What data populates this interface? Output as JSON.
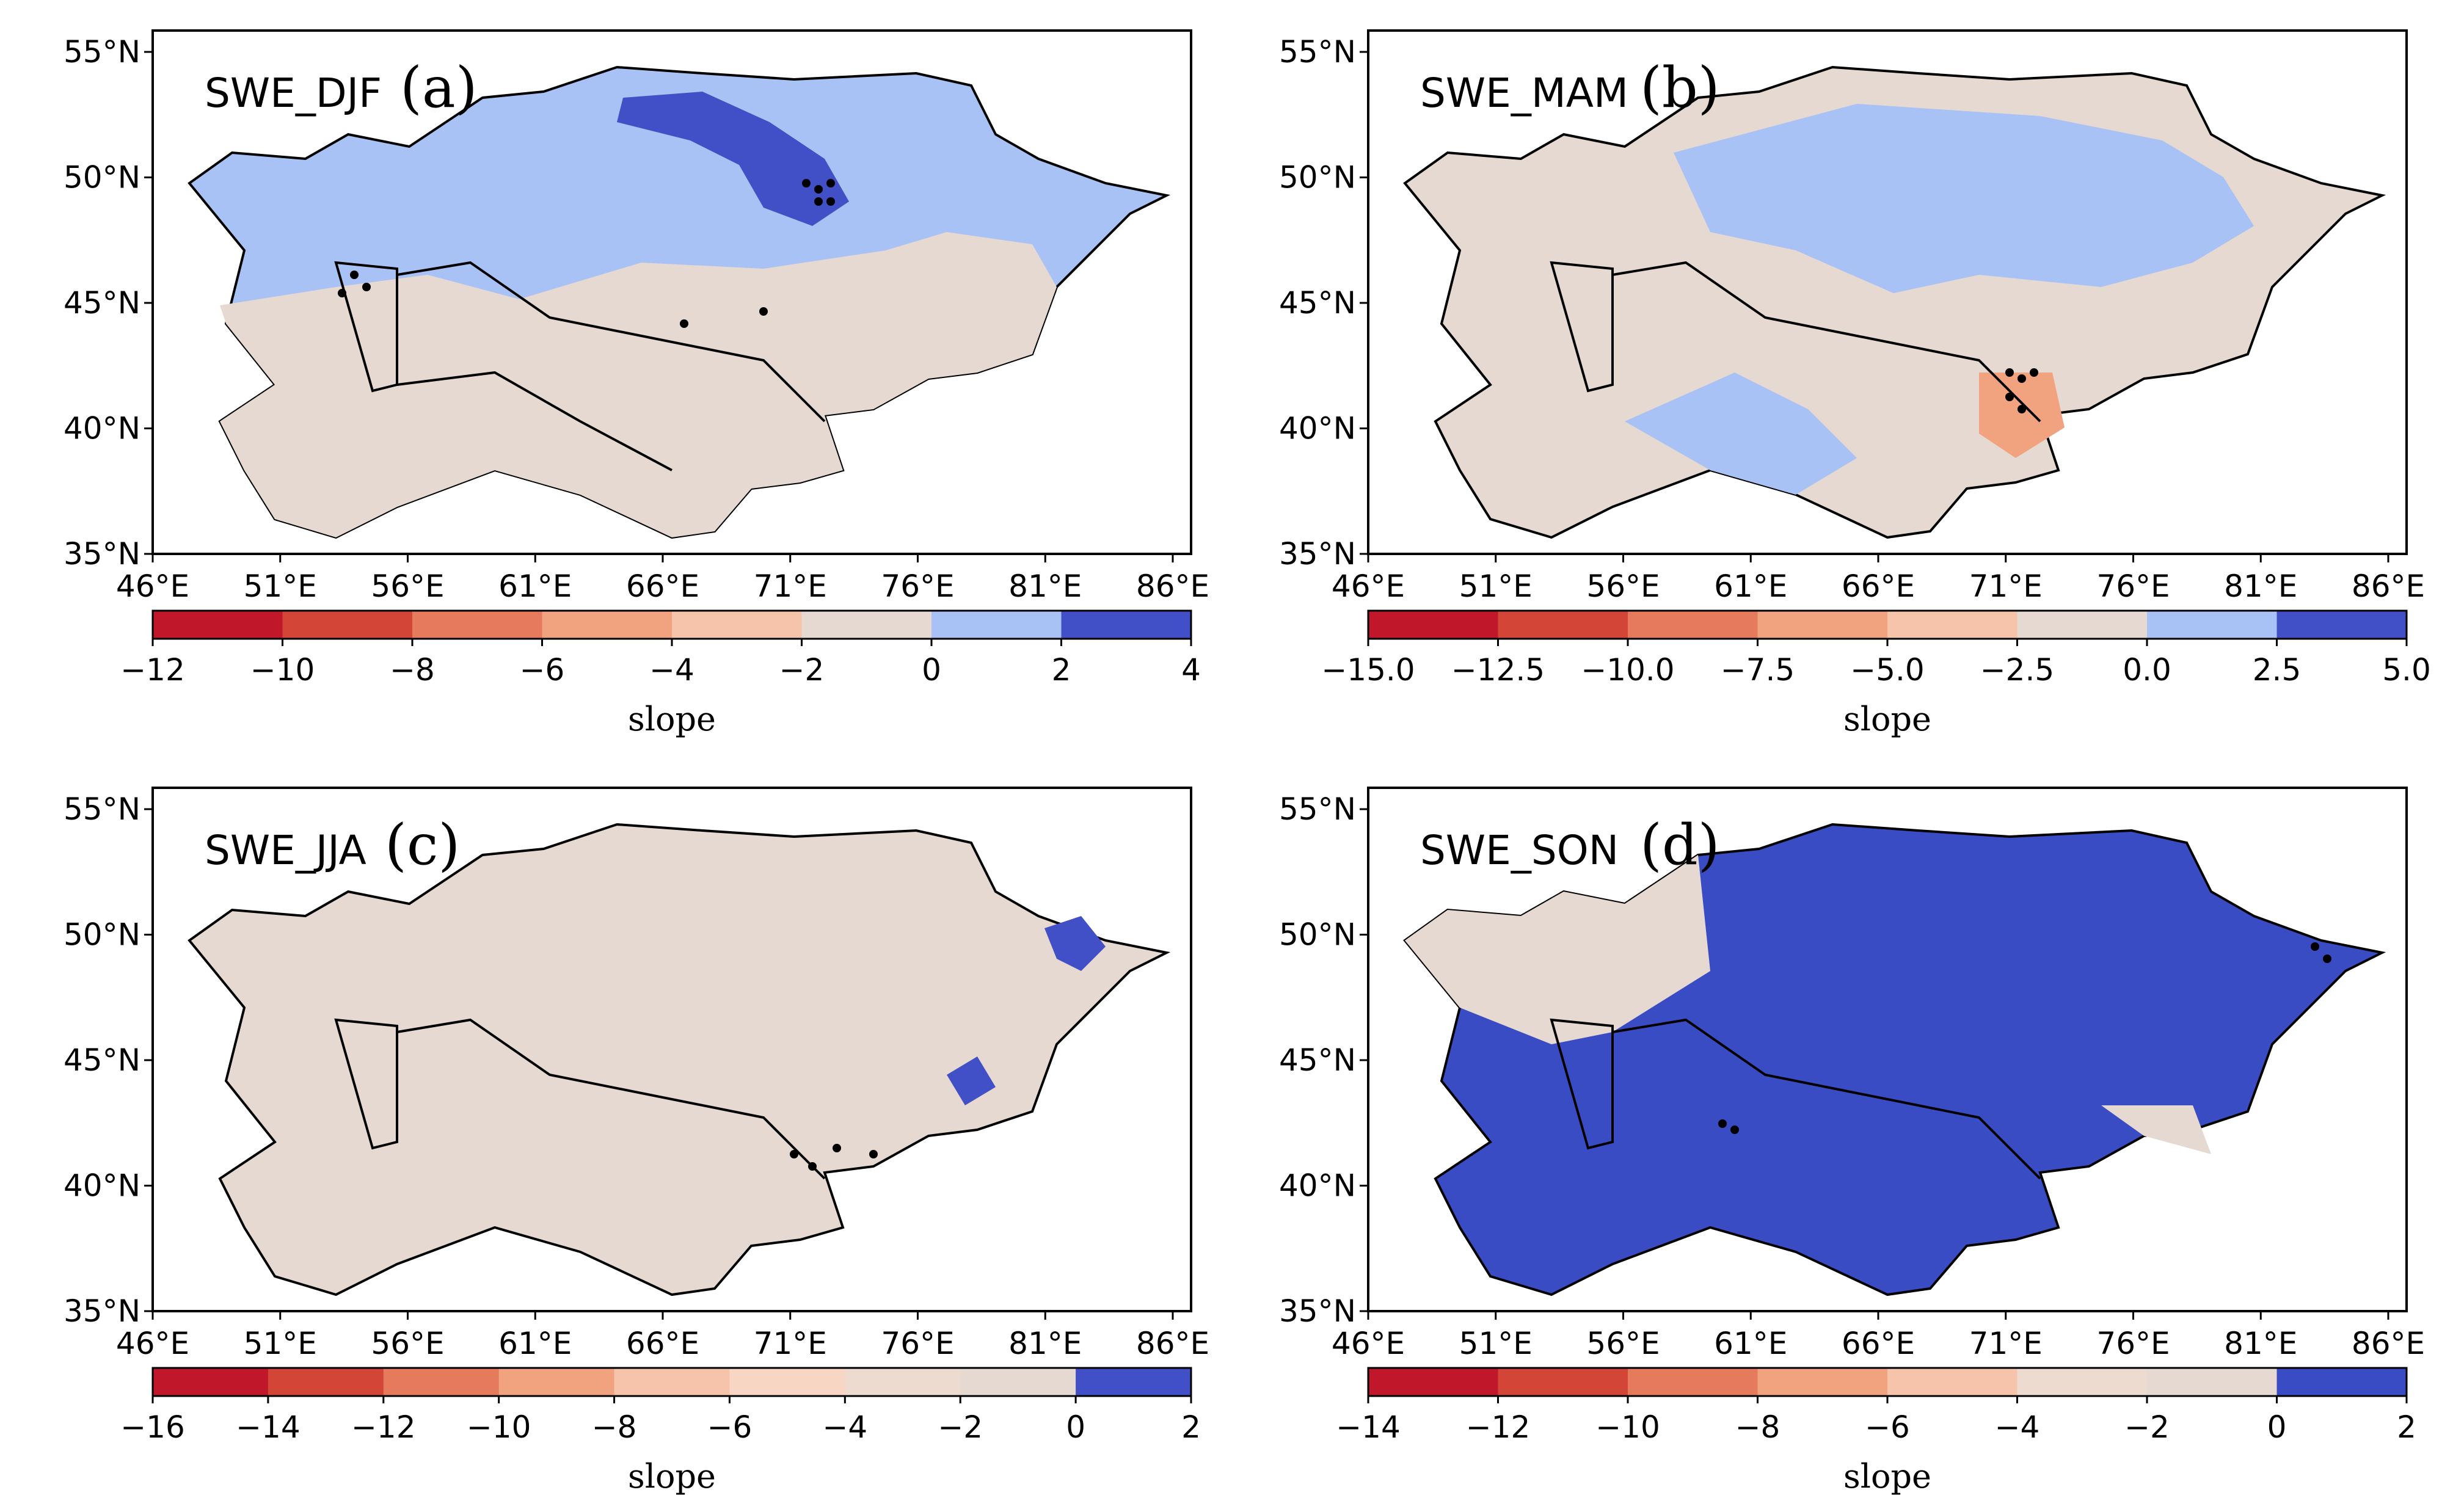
{
  "figure": {
    "panels": [
      {
        "id": "a",
        "title": "SWE_DJF",
        "letter": "(a)",
        "lat_labels": [
          "55°N",
          "50°N",
          "45°N",
          "40°N",
          "35°N"
        ],
        "lon_labels": [
          "46°E",
          "51°E",
          "56°E",
          "61°E",
          "66°E",
          "71°E",
          "76°E",
          "81°E",
          "86°E"
        ],
        "colorbar": {
          "ticks": [
            "−12",
            "−10",
            "−8",
            "−6",
            "−4",
            "−2",
            "0",
            "2",
            "4"
          ],
          "colors": [
            "#c0172b",
            "#d24537",
            "#e57a5d",
            "#f1a380",
            "#f5c4ab",
            "#e6d9d1",
            "#a9c2f5",
            "#4150c6"
          ],
          "label": "slope"
        },
        "fill": {
          "north": "#a9c2f5",
          "south": "#e6d9d1",
          "hot": "#4150c6"
        }
      },
      {
        "id": "b",
        "title": "SWE_MAM",
        "letter": "(b)",
        "lat_labels": [
          "55°N",
          "50°N",
          "45°N",
          "40°N",
          "35°N"
        ],
        "lon_labels": [
          "46°E",
          "51°E",
          "56°E",
          "61°E",
          "66°E",
          "71°E",
          "76°E",
          "81°E",
          "86°E"
        ],
        "colorbar": {
          "ticks": [
            "−15.0",
            "−12.5",
            "−10.0",
            "−7.5",
            "−5.0",
            "−2.5",
            "0.0",
            "2.5",
            "5.0"
          ],
          "colors": [
            "#c0172b",
            "#d24537",
            "#e57a5d",
            "#f1a380",
            "#f5c4ab",
            "#e6d9d1",
            "#a9c2f5",
            "#4150c6"
          ],
          "label": "slope"
        },
        "fill": {
          "north": "#a9c2f5",
          "south": "#e6d9d1",
          "hot": "#f1a380"
        }
      },
      {
        "id": "c",
        "title": "SWE_JJA",
        "letter": "(c)",
        "lat_labels": [
          "55°N",
          "50°N",
          "45°N",
          "40°N",
          "35°N"
        ],
        "lon_labels": [
          "46°E",
          "51°E",
          "56°E",
          "61°E",
          "66°E",
          "71°E",
          "76°E",
          "81°E",
          "86°E"
        ],
        "colorbar": {
          "ticks": [
            "−16",
            "−14",
            "−12",
            "−10",
            "−8",
            "−6",
            "−4",
            "−2",
            "0",
            "2"
          ],
          "colors": [
            "#c0172b",
            "#d24537",
            "#e57a5d",
            "#f1a380",
            "#f5c4ab",
            "#f8d6c4",
            "#eddbd0",
            "#e6d9d1",
            "#4150c6"
          ],
          "label": "slope"
        },
        "fill": {
          "north": "#e6d9d1",
          "south": "#e6d9d1",
          "hot": "#4150c6"
        }
      },
      {
        "id": "d",
        "title": "SWE_SON",
        "letter": "(d)",
        "lat_labels": [
          "55°N",
          "50°N",
          "45°N",
          "40°N",
          "35°N"
        ],
        "lon_labels": [
          "46°E",
          "51°E",
          "56°E",
          "61°E",
          "66°E",
          "71°E",
          "76°E",
          "81°E",
          "86°E"
        ],
        "colorbar": {
          "ticks": [
            "−14",
            "−12",
            "−10",
            "−8",
            "−6",
            "−4",
            "−2",
            "0",
            "2"
          ],
          "colors": [
            "#c0172b",
            "#d24537",
            "#e57a5d",
            "#f1a380",
            "#f5c4ab",
            "#eddbd0",
            "#e6d9d1",
            "#3a4cc3"
          ],
          "label": "slope"
        },
        "fill": {
          "north": "#3a4cc3",
          "south": "#3a4cc3",
          "hot": "#e6d9d1"
        }
      }
    ]
  }
}
